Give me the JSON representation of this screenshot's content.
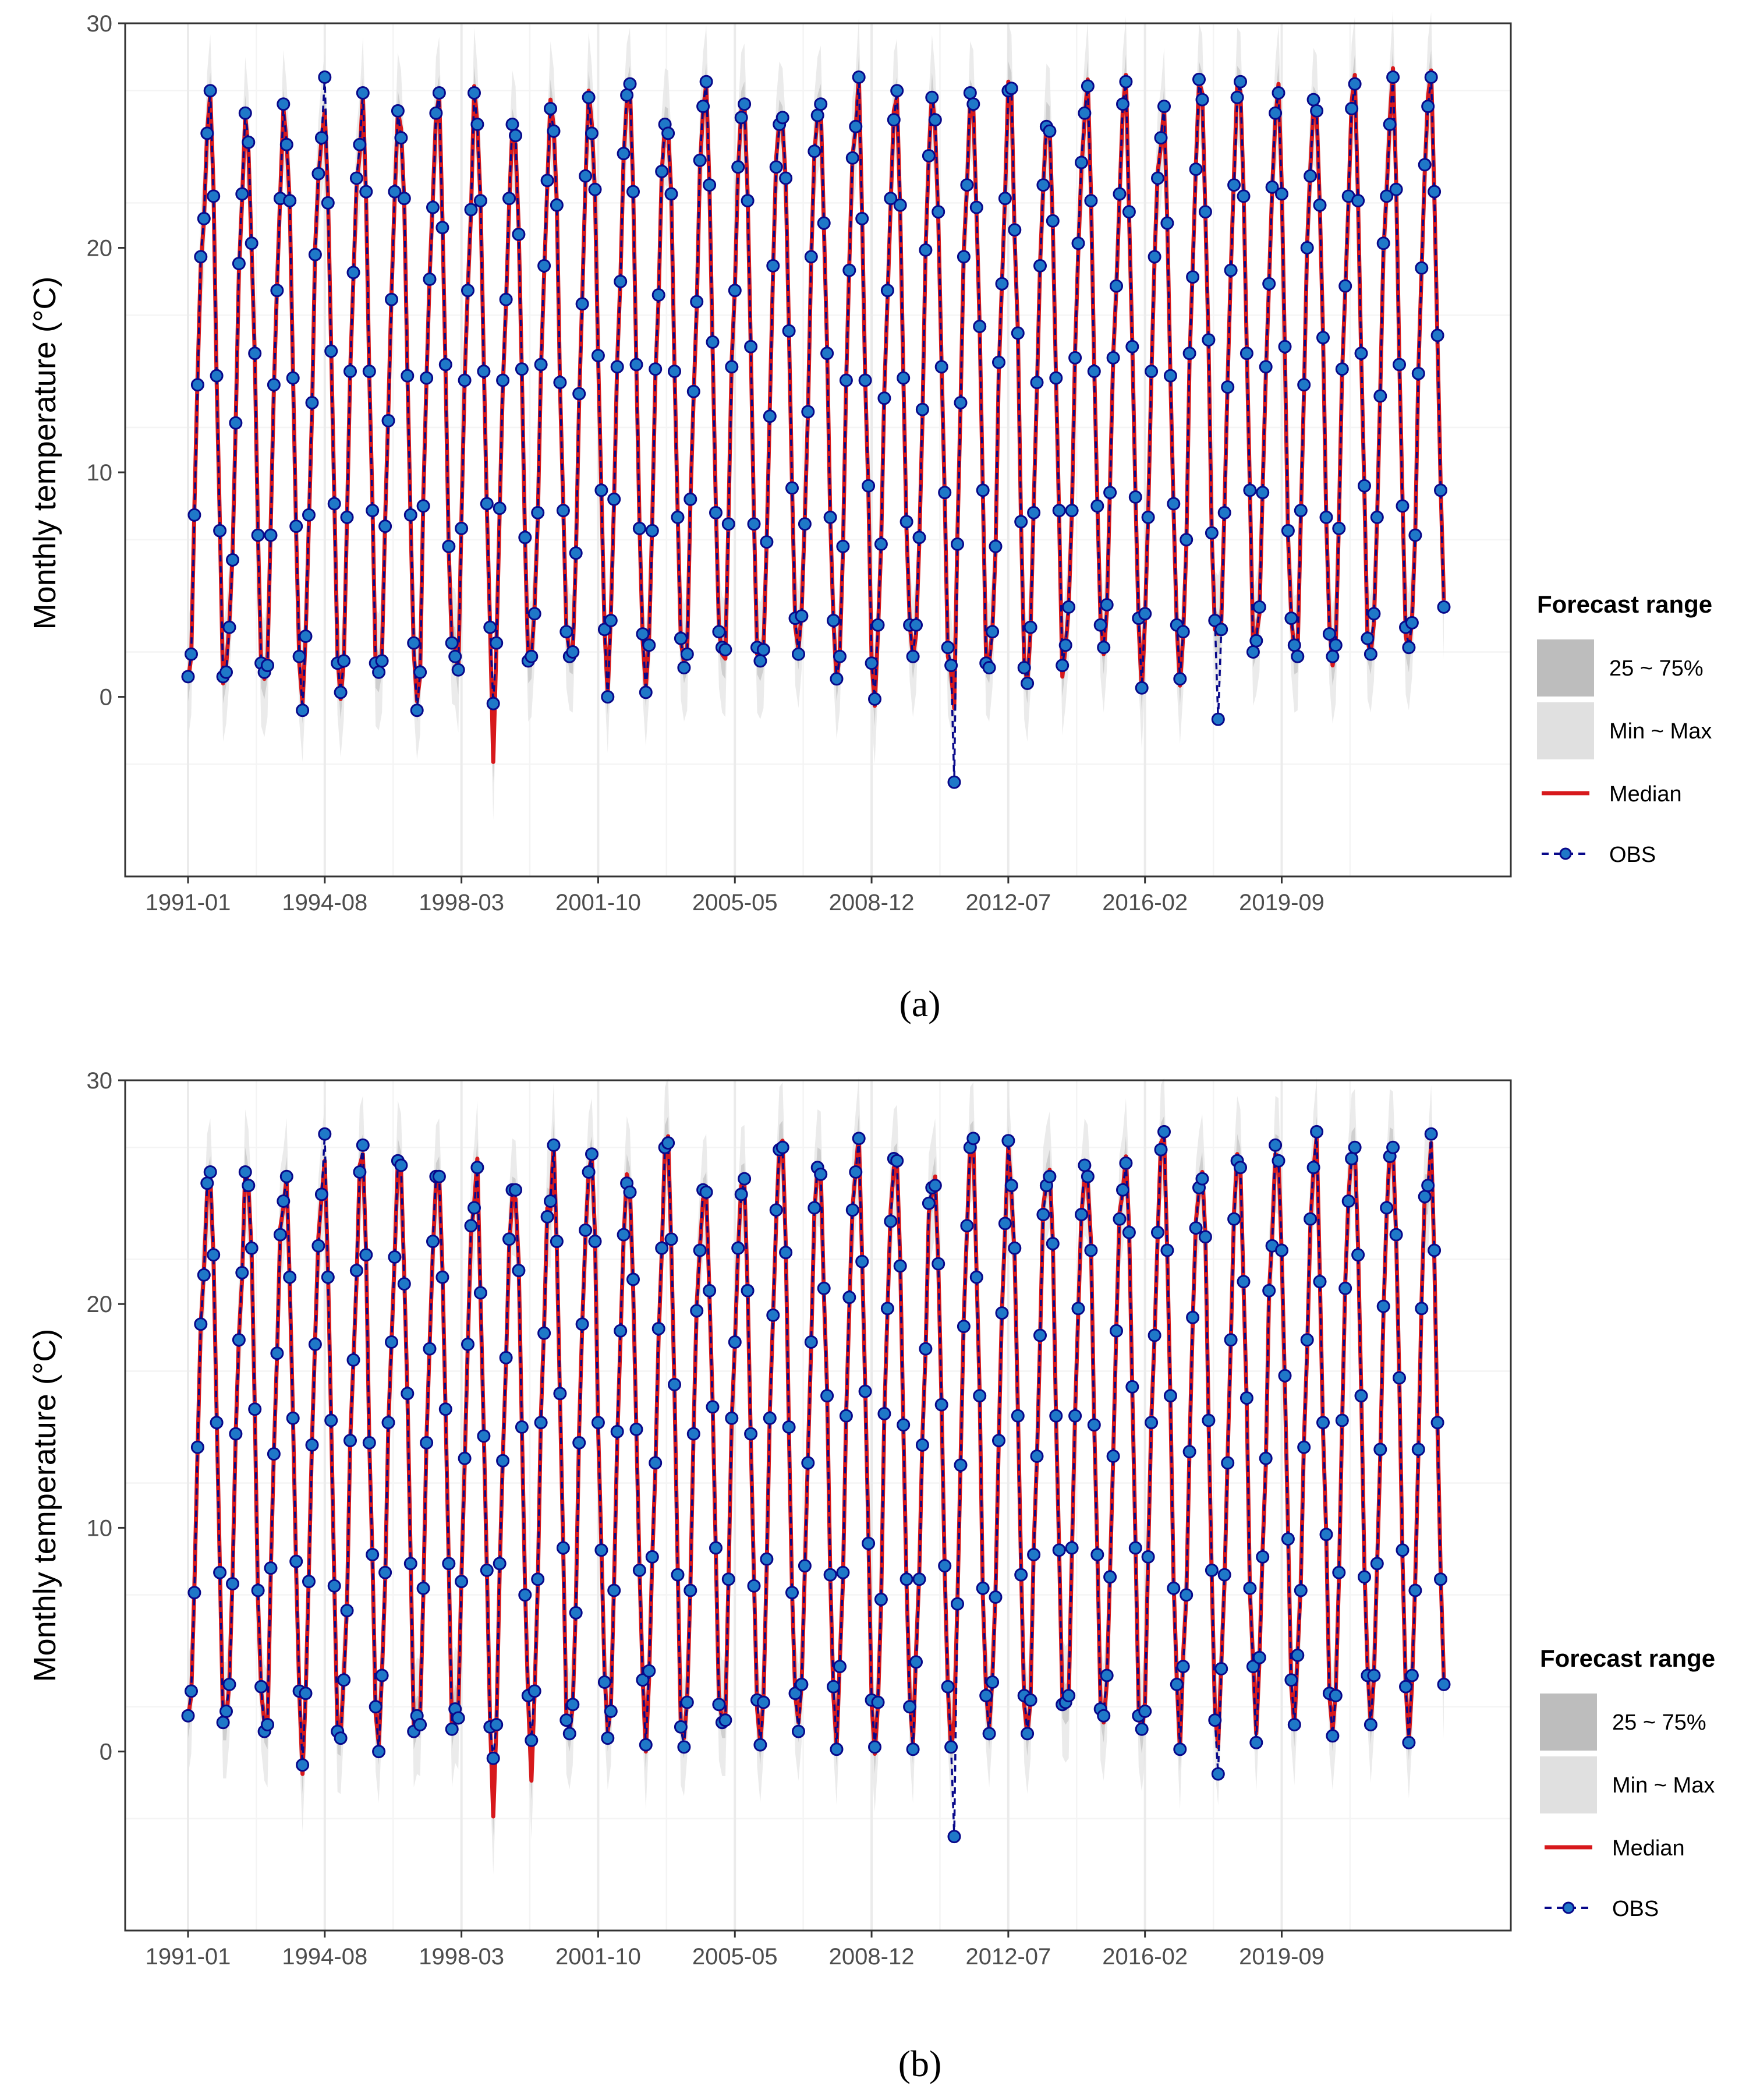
{
  "colors": {
    "median": "#d7191c",
    "obs_line": "#08088a",
    "obs_point_fill": "#1f78c8",
    "obs_point_stroke": "#08088a",
    "range_minmax": "#e6e6e6",
    "range_iqr": "#bdbdbd",
    "grid_major": "#ebebeb",
    "grid_minor": "#f4f4f4",
    "panel_border": "#333333"
  },
  "legend": {
    "title": "Forecast range",
    "iqr_label": "25 ~ 75%",
    "minmax_label": "Min ~ Max",
    "median_label": "Median",
    "obs_label": "OBS"
  },
  "chart_data": [
    {
      "type": "line",
      "panel_label": "(a)",
      "ylabel": "Monthly temperature (°C)",
      "xlabel": "",
      "ylim": [
        -8,
        30
      ],
      "yticks": [
        "0",
        "10",
        "20",
        "30"
      ],
      "xticks": [
        "1991-01",
        "1994-08",
        "1998-03",
        "2001-10",
        "2005-05",
        "2008-12",
        "2012-07",
        "2016-02",
        "2019-09"
      ],
      "xrange": [
        "1991-01",
        "2023-12"
      ],
      "grid": true,
      "legend_position": "right",
      "series_names": [
        "Median",
        "OBS"
      ],
      "obs_anomalies": [
        {
          "date": "1994-08",
          "value": 27.6
        },
        {
          "date": "2011-02",
          "value": -3.8
        },
        {
          "date": "1999-01",
          "value": -0.3
        },
        {
          "date": "2018-01",
          "value": -1.0
        }
      ],
      "median_anomalies": [
        {
          "date": "1999-01",
          "value": -2.9
        },
        {
          "date": "2011-02",
          "value": -0.5
        }
      ]
    },
    {
      "type": "line",
      "panel_label": "(b)",
      "ylabel": "Monthly temperature (°C)",
      "xlabel": "",
      "ylim": [
        -8,
        30
      ],
      "yticks": [
        "0",
        "10",
        "20",
        "30"
      ],
      "xticks": [
        "1991-01",
        "1994-08",
        "1998-03",
        "2001-10",
        "2005-05",
        "2008-12",
        "2012-07",
        "2016-02",
        "2019-09"
      ],
      "xrange": [
        "1991-01",
        "2023-12"
      ],
      "grid": true,
      "legend_position": "right",
      "series_names": [
        "Median",
        "OBS"
      ],
      "obs_anomalies": [
        {
          "date": "1994-08",
          "value": 27.6
        },
        {
          "date": "2011-02",
          "value": -3.8
        },
        {
          "date": "1999-01",
          "value": -0.3
        },
        {
          "date": "2018-01",
          "value": -1.0
        }
      ],
      "median_anomalies": [
        {
          "date": "1999-01",
          "value": -2.9
        },
        {
          "date": "2000-01",
          "value": -1.3
        }
      ]
    }
  ]
}
